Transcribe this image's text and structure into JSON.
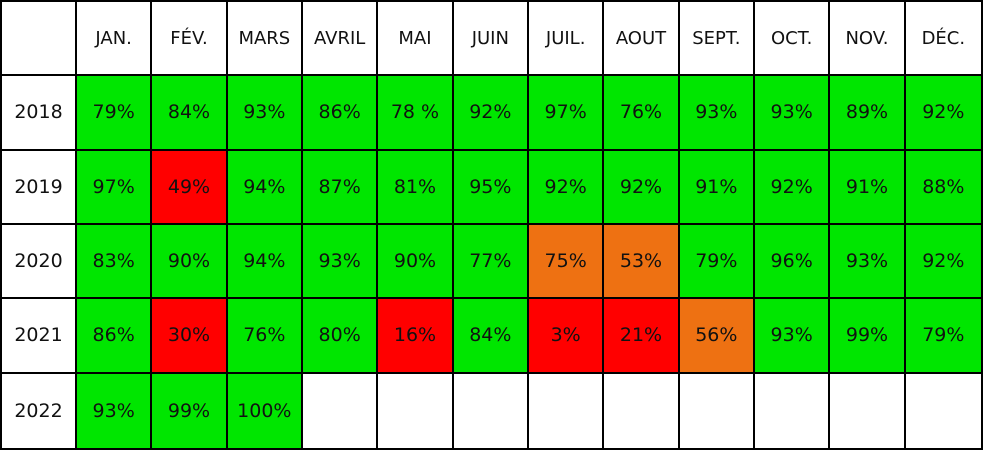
{
  "header": {
    "months": [
      "JAN.",
      "FÉV.",
      "MARS",
      "AVRIL",
      "MAI",
      "JUIN",
      "JUIL.",
      "AOUT",
      "SEPT.",
      "OCT.",
      "NOV.",
      "DÉC."
    ]
  },
  "rows": [
    {
      "year": "2018",
      "cells": [
        "79%",
        "84%",
        "93%",
        "86%",
        "78 %",
        "92%",
        "97%",
        "76%",
        "93%",
        "93%",
        "89%",
        "92%"
      ],
      "colors": [
        "#00e600",
        "#00e600",
        "#00e600",
        "#00e600",
        "#00e600",
        "#00e600",
        "#00e600",
        "#00e600",
        "#00e600",
        "#00e600",
        "#00e600",
        "#00e600"
      ]
    },
    {
      "year": "2019",
      "cells": [
        "97%",
        "49%",
        "94%",
        "87%",
        "81%",
        "95%",
        "92%",
        "92%",
        "91%",
        "92%",
        "91%",
        "88%"
      ],
      "colors": [
        "#00e600",
        "#ff0000",
        "#00e600",
        "#00e600",
        "#00e600",
        "#00e600",
        "#00e600",
        "#00e600",
        "#00e600",
        "#00e600",
        "#00e600",
        "#00e600"
      ]
    },
    {
      "year": "2020",
      "cells": [
        "83%",
        "90%",
        "94%",
        "93%",
        "90%",
        "77%",
        "75%",
        "53%",
        "79%",
        "96%",
        "93%",
        "92%"
      ],
      "colors": [
        "#00e600",
        "#00e600",
        "#00e600",
        "#00e600",
        "#00e600",
        "#00e600",
        "#ee7112",
        "#ee7112",
        "#00e600",
        "#00e600",
        "#00e600",
        "#00e600"
      ]
    },
    {
      "year": "2021",
      "cells": [
        "86%",
        "30%",
        "76%",
        "80%",
        "16%",
        "84%",
        "3%",
        "21%",
        "56%",
        "93%",
        "99%",
        "79%"
      ],
      "colors": [
        "#00e600",
        "#ff0000",
        "#00e600",
        "#00e600",
        "#ff0000",
        "#00e600",
        "#ff0000",
        "#ff0000",
        "#ee7112",
        "#00e600",
        "#00e600",
        "#00e600"
      ]
    },
    {
      "year": "2022",
      "cells": [
        "93%",
        "99%",
        "100%"
      ],
      "colors": [
        "#00e600",
        "#00e600",
        "#00e600"
      ]
    }
  ]
}
